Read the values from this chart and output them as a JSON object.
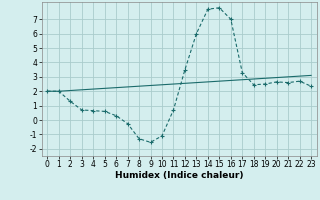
{
  "xlabel": "Humidex (Indice chaleur)",
  "background_color": "#d4eeee",
  "grid_color": "#aacccc",
  "line_color": "#1a6b6b",
  "x_curve": [
    0,
    1,
    2,
    3,
    4,
    5,
    6,
    7,
    8,
    9,
    10,
    11,
    12,
    13,
    14,
    15,
    16,
    17,
    18,
    19,
    20,
    21,
    22,
    23
  ],
  "y_curve1": [
    2.0,
    2.0,
    1.3,
    0.7,
    0.65,
    0.6,
    0.3,
    -0.25,
    -1.3,
    -1.55,
    -1.1,
    0.7,
    3.5,
    6.0,
    7.7,
    7.8,
    7.0,
    3.3,
    2.45,
    2.5,
    2.65,
    2.6,
    2.7,
    2.35
  ],
  "y_curve2": [
    2.0,
    2.0,
    2.05,
    2.1,
    2.15,
    2.2,
    2.25,
    2.3,
    2.35,
    2.4,
    2.45,
    2.5,
    2.55,
    2.6,
    2.65,
    2.7,
    2.75,
    2.8,
    2.85,
    2.9,
    2.95,
    3.0,
    3.05,
    3.1
  ],
  "ylim": [
    -2.5,
    8.2
  ],
  "xlim": [
    -0.5,
    23.5
  ],
  "yticks": [
    -2,
    -1,
    0,
    1,
    2,
    3,
    4,
    5,
    6,
    7
  ],
  "xticks": [
    0,
    1,
    2,
    3,
    4,
    5,
    6,
    7,
    8,
    9,
    10,
    11,
    12,
    13,
    14,
    15,
    16,
    17,
    18,
    19,
    20,
    21,
    22,
    23
  ],
  "label_fontsize": 6.5,
  "tick_fontsize": 5.5
}
